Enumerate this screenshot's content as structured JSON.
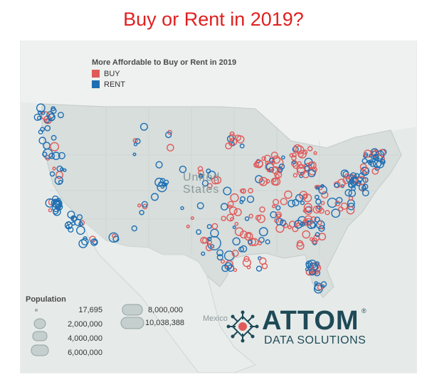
{
  "title": "Buy or Rent in 2019?",
  "legend": {
    "title": "More Affordable to Buy or Rent in 2019",
    "items": [
      {
        "label": "BUY",
        "color": "#e05a5a"
      },
      {
        "label": "RENT",
        "color": "#1f6fb2"
      }
    ]
  },
  "map_labels": {
    "country_line1": "United",
    "country_line2": "States",
    "mexico": "Mexico"
  },
  "population_legend": {
    "title": "Population",
    "values": [
      "17,695",
      "2,000,000",
      "4,000,000",
      "6,000,000",
      "8,000,000",
      "10,038,388"
    ]
  },
  "brand": {
    "name": "ATTOM",
    "registered": "®",
    "tagline": "DATA SOLUTIONS"
  }
}
